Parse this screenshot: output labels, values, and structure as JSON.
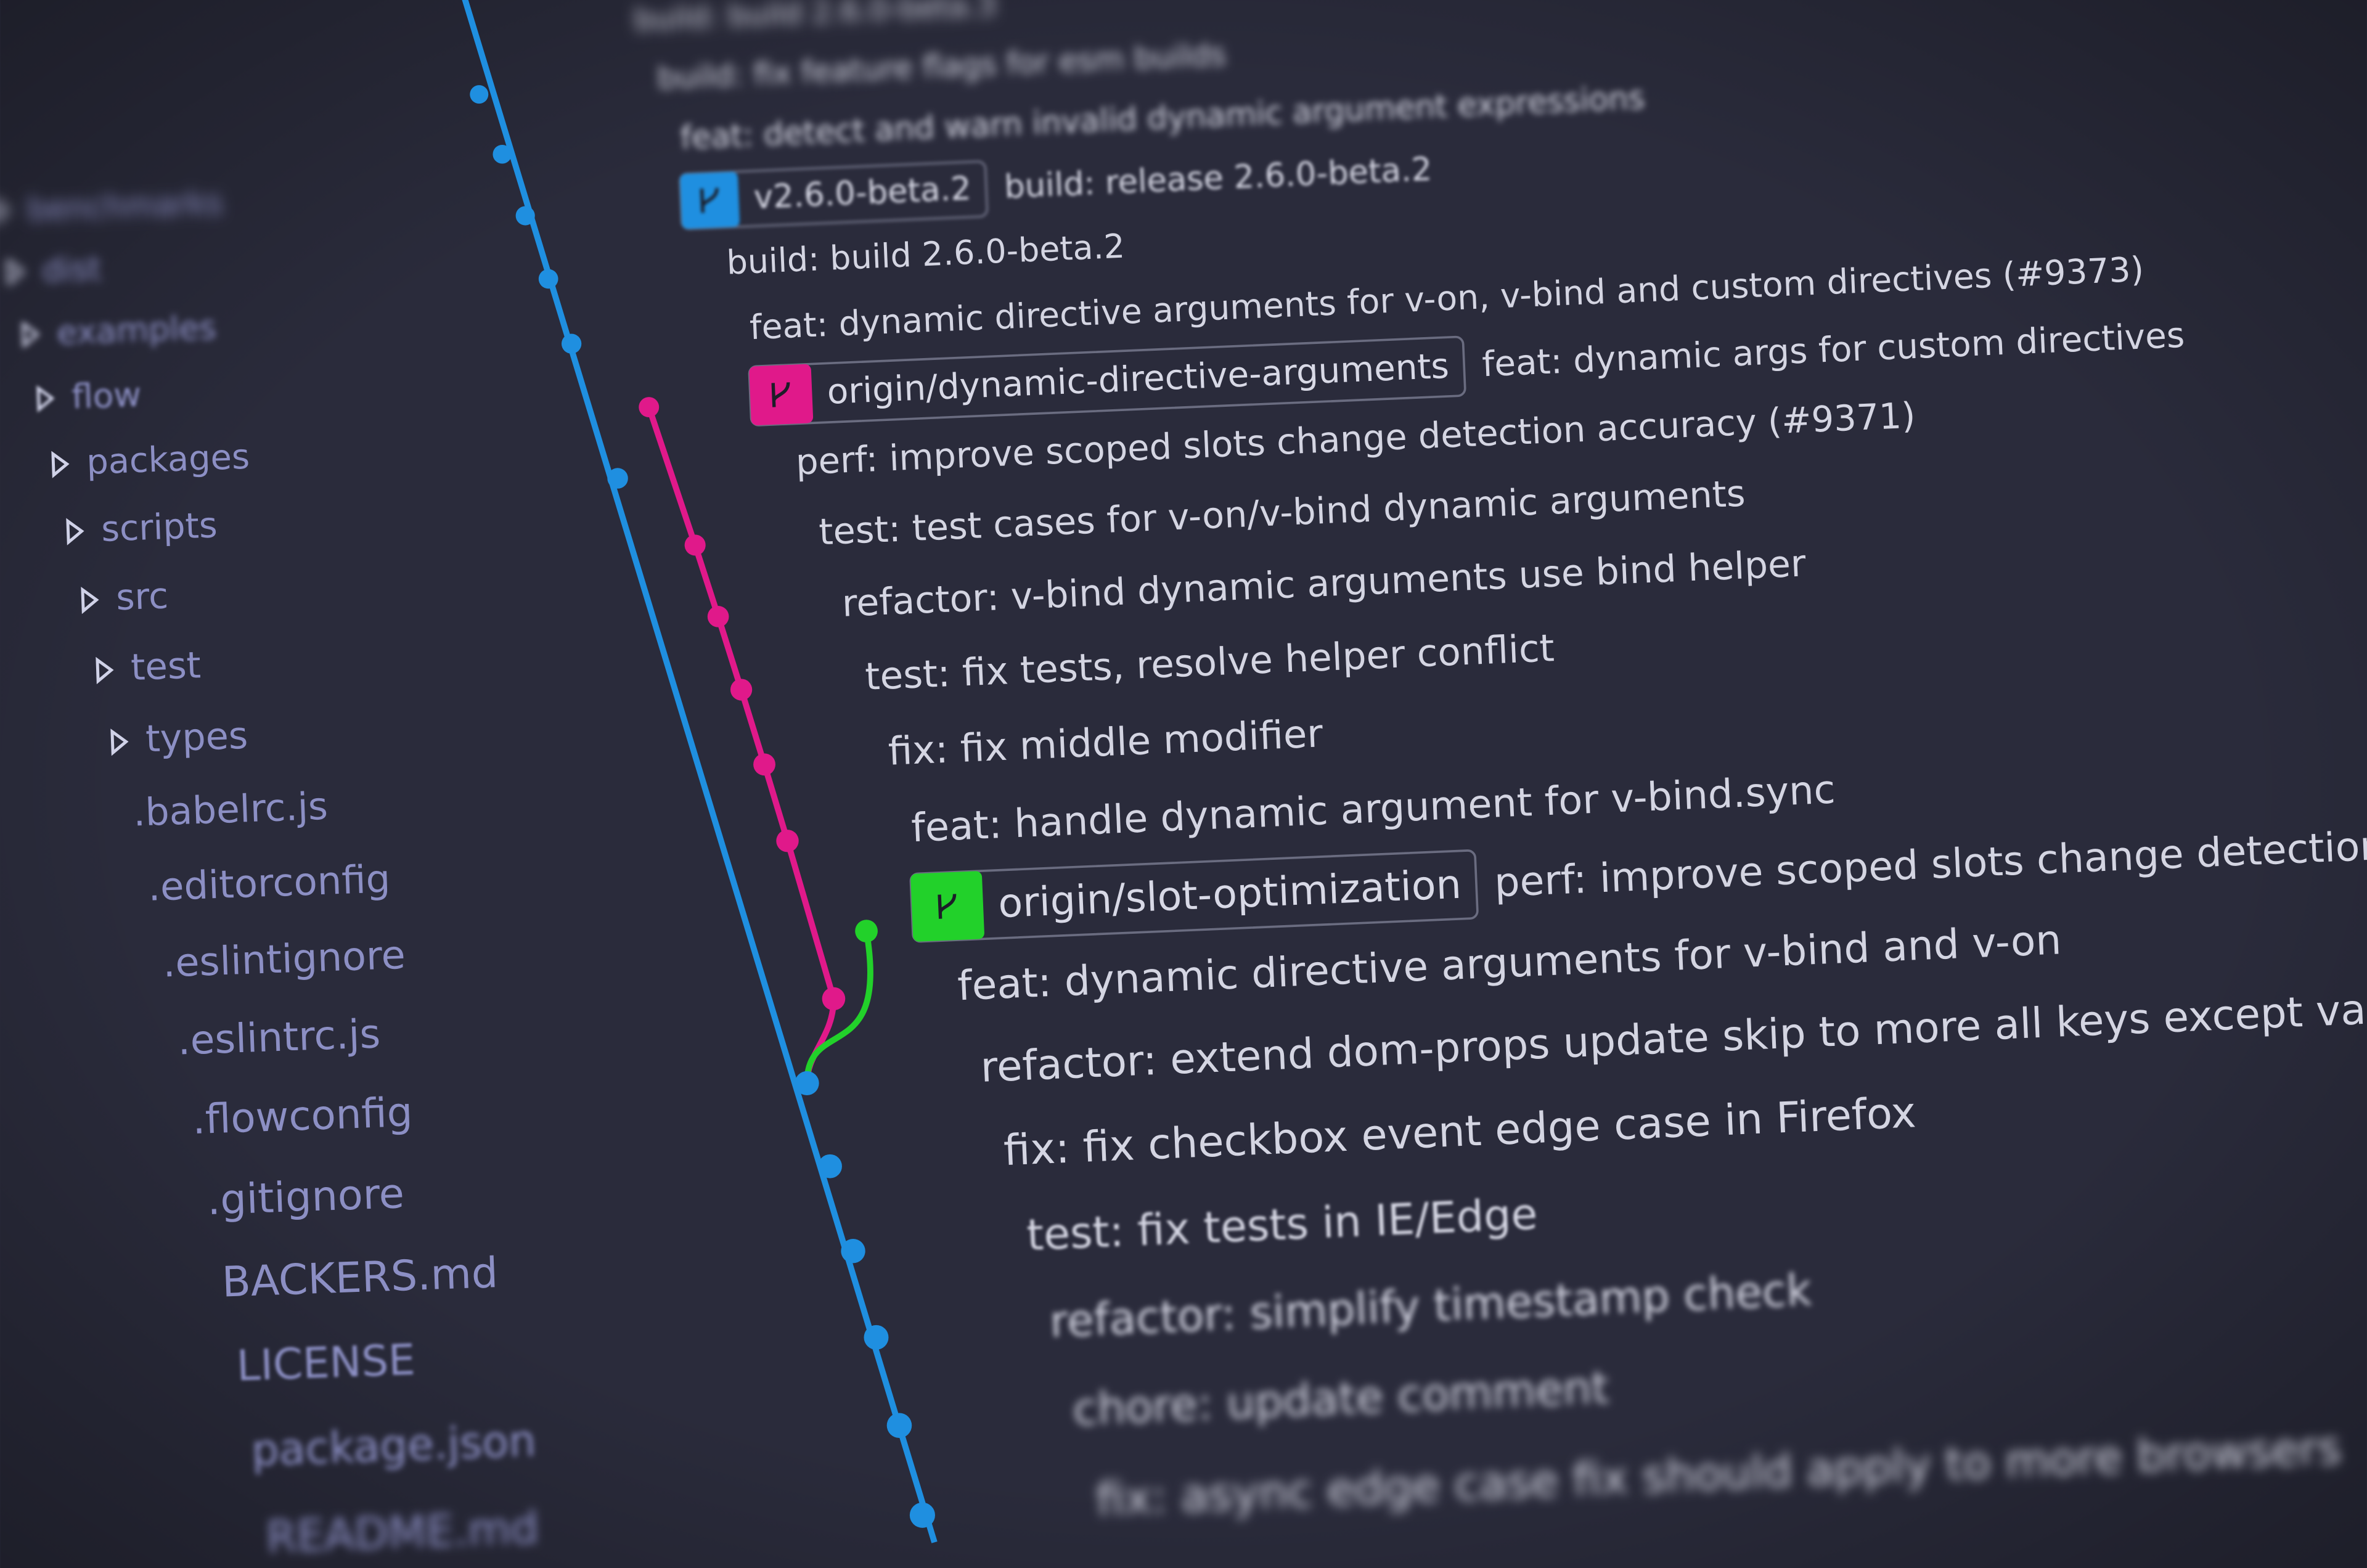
{
  "sidebar": {
    "folders": [
      "benchmarks",
      "dist",
      "examples",
      "flow",
      "packages",
      "scripts",
      "src",
      "test",
      "types"
    ],
    "files": [
      ".babelrc.js",
      ".editorconfig",
      ".eslintignore",
      ".eslintrc.js",
      ".flowconfig",
      ".gitignore",
      "BACKERS.md",
      "LICENSE",
      "package.json",
      "README.md"
    ]
  },
  "commits": [
    {
      "message": "build: build 2.6.0-beta.3"
    },
    {
      "message": "build: fix feature flags for esm builds"
    },
    {
      "message": "feat: detect and warn invalid dynamic argument expressions"
    },
    {
      "ref": "v2.6.0-beta.2",
      "message": "build: release 2.6.0-beta.2"
    },
    {
      "message": "build: build 2.6.0-beta.2"
    },
    {
      "message": "feat: dynamic directive arguments for v-on, v-bind and custom directives (#9373)"
    },
    {
      "ref": "origin/dynamic-directive-arguments",
      "message": "feat: dynamic args for custom directives"
    },
    {
      "message": "perf: improve scoped slots change detection accuracy (#9371)"
    },
    {
      "message": "test: test cases for v-on/v-bind dynamic arguments"
    },
    {
      "message": "refactor: v-bind dynamic arguments use bind helper"
    },
    {
      "message": "test: fix tests, resolve helper conflict"
    },
    {
      "message": "fix: fix middle modifier"
    },
    {
      "message": "feat: handle dynamic argument for v-bind.sync"
    },
    {
      "ref": "origin/slot-optimization",
      "message": "perf: improve scoped slots change detection accuracy"
    },
    {
      "message": "feat: dynamic directive arguments for v-bind and v-on"
    },
    {
      "message": "refactor: extend dom-props update skip to more all keys except value"
    },
    {
      "message": "fix: fix checkbox event edge case in Firefox"
    },
    {
      "message": "test: fix tests in IE/Edge"
    },
    {
      "message": "refactor: simplify timestamp check"
    },
    {
      "message": "chore: update comment"
    },
    {
      "message": "fix: async edge case fix should apply to more browsers"
    }
  ]
}
